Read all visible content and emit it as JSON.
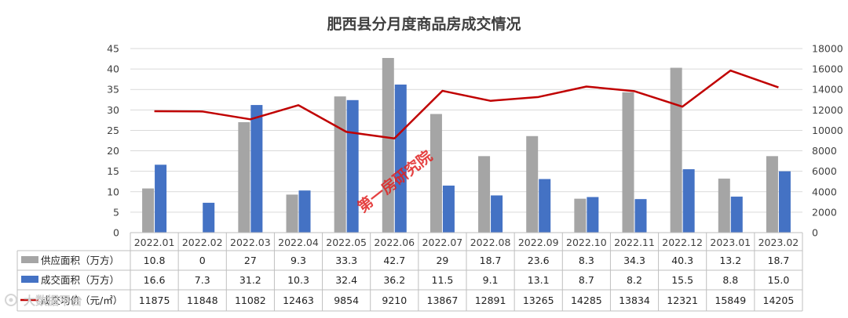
{
  "chart_data": {
    "type": "bar",
    "title": "肥西县分月度商品房成交情况",
    "categories": [
      "2022.01",
      "2022.02",
      "2022.03",
      "2022.04",
      "2022.05",
      "2022.06",
      "2022.07",
      "2022.08",
      "2022.09",
      "2022.10",
      "2022.11",
      "2022.12",
      "2023.01",
      "2023.02"
    ],
    "series": [
      {
        "name": "供应面积（万方）",
        "type": "bar",
        "axis": "left",
        "color": "#a5a5a5",
        "values": [
          10.8,
          0,
          27,
          9.3,
          33.3,
          42.7,
          29,
          18.7,
          23.6,
          8.3,
          34.3,
          40.3,
          13.2,
          18.7
        ],
        "labels": [
          "10.8",
          "0",
          "27",
          "9.3",
          "33.3",
          "42.7",
          "29",
          "18.7",
          "23.6",
          "8.3",
          "34.3",
          "40.3",
          "13.2",
          "18.7"
        ]
      },
      {
        "name": "成交面积（万方）",
        "type": "bar",
        "axis": "left",
        "color": "#4472c4",
        "values": [
          16.6,
          7.3,
          31.2,
          10.3,
          32.4,
          36.2,
          11.5,
          9.1,
          13.1,
          8.7,
          8.2,
          15.5,
          8.8,
          15.0
        ],
        "labels": [
          "16.6",
          "7.3",
          "31.2",
          "10.3",
          "32.4",
          "36.2",
          "11.5",
          "9.1",
          "13.1",
          "8.7",
          "8.2",
          "15.5",
          "8.8",
          "15.0"
        ]
      },
      {
        "name": "成交均价（元/㎡）",
        "type": "line",
        "axis": "right",
        "color": "#c00000",
        "values": [
          11875,
          11848,
          11082,
          12463,
          9854,
          9210,
          13867,
          12891,
          13265,
          14285,
          13834,
          12321,
          15849,
          14205
        ],
        "labels": [
          "11875",
          "11848",
          "11082",
          "12463",
          "9854",
          "9210",
          "13867",
          "12891",
          "13265",
          "14285",
          "13834",
          "12321",
          "15849",
          "14205"
        ]
      }
    ],
    "y_left": {
      "range": [
        0,
        45
      ],
      "ticks": [
        "0",
        "5",
        "10",
        "15",
        "20",
        "25",
        "30",
        "35",
        "40",
        "45"
      ]
    },
    "y_right": {
      "range": [
        0,
        18000
      ],
      "ticks": [
        "0",
        "2000",
        "4000",
        "6000",
        "8000",
        "10000",
        "12000",
        "14000",
        "16000",
        "18000"
      ]
    },
    "grid": true,
    "legend": "data-table"
  },
  "watermark": "第一房研究院",
  "logo_text": "大数据平台"
}
